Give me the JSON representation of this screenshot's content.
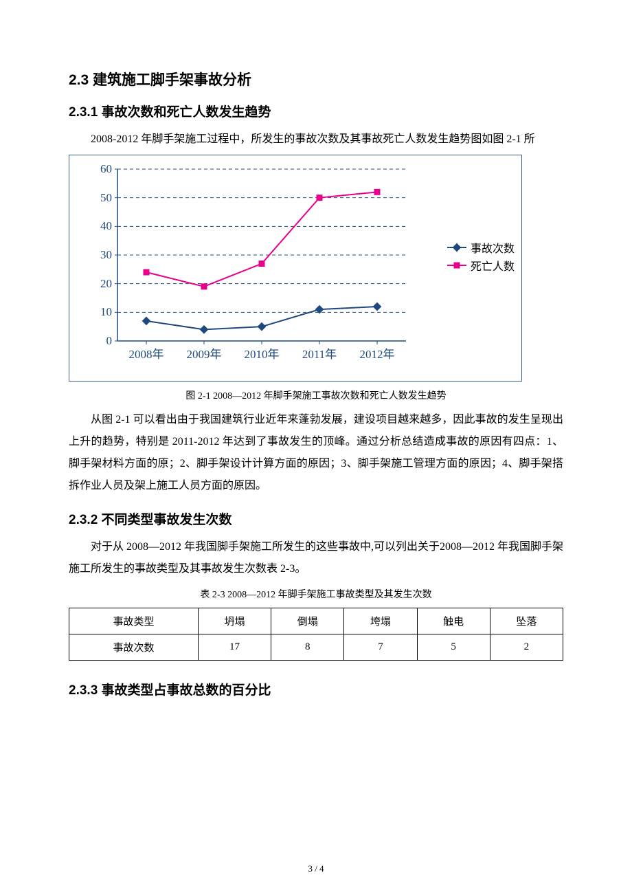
{
  "headings": {
    "h1": "2.3 建筑施工脚手架事故分析",
    "h2a": "2.3.1 事故次数和死亡人数发生趋势",
    "h2b": "2.3.2 不同类型事故发生次数",
    "h2c": "2.3.3 事故类型占事故总数的百分比"
  },
  "paragraphs": {
    "p1": "2008-2012 年脚手架施工过程中，所发生的事故次数及其事故死亡人数发生趋势图如图 2-1 所",
    "p2": "从图 2-1 可以看出由于我国建筑行业近年来蓬勃发展，建设项目越来越多，因此事故的发生呈现出上升的趋势，特别是 2011-2012 年达到了事故发生的顶峰。通过分析总结造成事故的原因有四点：1、脚手架材料方面的原；2、脚手架设计计算方面的原因；3、脚手架施工管理方面的原因；4、脚手架搭拆作业人员及架上施工人员方面的原因。",
    "p3": "对于从 2008—2012 年我国脚手架施工所发生的这些事故中,可以列出关于2008—2012 年我国脚手架施工所发生的事故类型及其事故发生次数表 2-3。"
  },
  "captions": {
    "fig": "图 2-1 2008—2012 年脚手架施工事故次数和死亡人数发生趋势",
    "tab": "表 2-3 2008—2012 年脚手架施工事故类型及其发生次数"
  },
  "chart": {
    "type": "line",
    "xlabels": [
      "2008年",
      "2009年",
      "2010年",
      "2011年",
      "2012年"
    ],
    "yticks": [
      0,
      10,
      20,
      30,
      40,
      50,
      60
    ],
    "ylim": [
      0,
      60
    ],
    "series": [
      {
        "name": "事故次数",
        "color": "#1f497d",
        "marker": "diamond",
        "values": [
          7,
          4,
          5,
          11,
          12
        ]
      },
      {
        "name": "死亡人数",
        "color": "#e6008c",
        "marker": "square",
        "values": [
          24,
          19,
          27,
          50,
          52
        ]
      }
    ],
    "axis_color": "#1f497d",
    "grid_color": "#1f497d",
    "grid_dash": "5,4",
    "border_color": "#385d8a",
    "background": "#ffffff",
    "label_fontsize": 17,
    "line_width": 2,
    "marker_size": 9
  },
  "table": {
    "header_label": "事故类型",
    "row_label": "事故次数",
    "columns": [
      "坍塌",
      "倒塌",
      "垮塌",
      "触电",
      "坠落"
    ],
    "values": [
      "17",
      "8",
      "7",
      "5",
      "2"
    ]
  },
  "footer": "3 / 4"
}
